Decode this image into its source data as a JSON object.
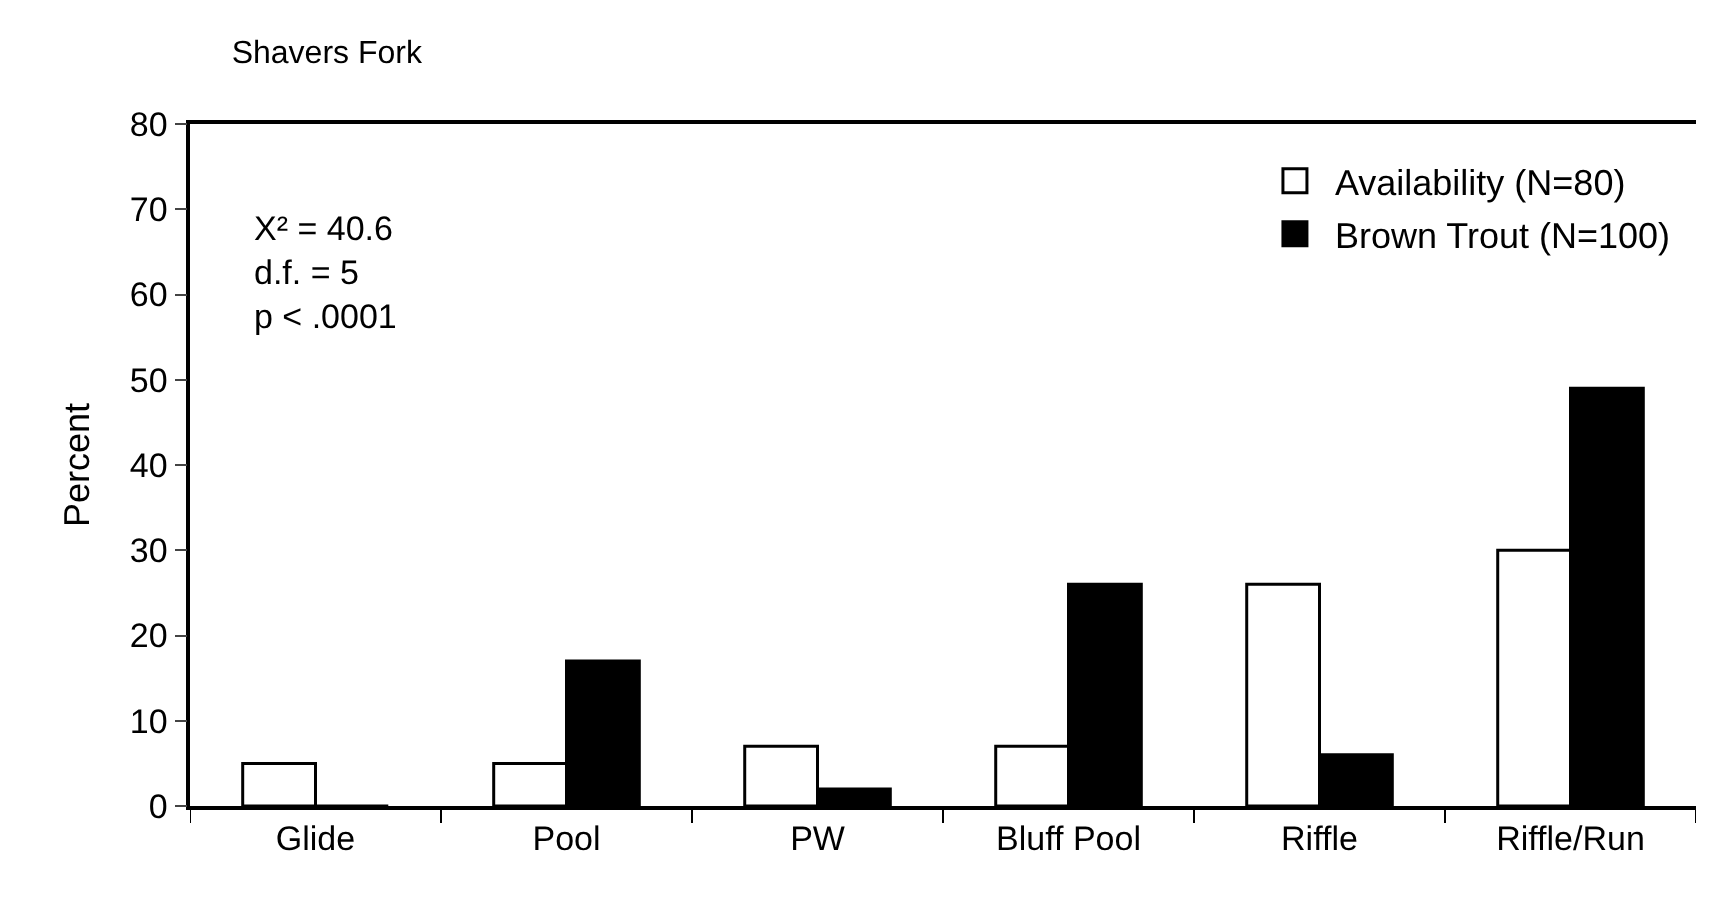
{
  "chart_data": {
    "type": "bar",
    "title": "Shavers Fork",
    "ylabel": "Percent",
    "categories": [
      "Glide",
      "Pool",
      "PW",
      "Bluff Pool",
      "Riffle",
      "Riffle/Run"
    ],
    "series": [
      {
        "name": "Availability (N=80)",
        "color": "#ffffff",
        "values": [
          5,
          5,
          7,
          7,
          26,
          30
        ]
      },
      {
        "name": "Brown Trout (N=100)",
        "color": "#000000",
        "values": [
          0,
          17,
          2,
          26,
          6,
          49
        ]
      }
    ],
    "ylim": [
      0,
      80
    ],
    "yticks": [
      0,
      10,
      20,
      30,
      40,
      50,
      60,
      70,
      80
    ],
    "annotations": [
      "X² = 40.6\nd.f. = 5\np < .0001"
    ],
    "legend": "top right"
  }
}
